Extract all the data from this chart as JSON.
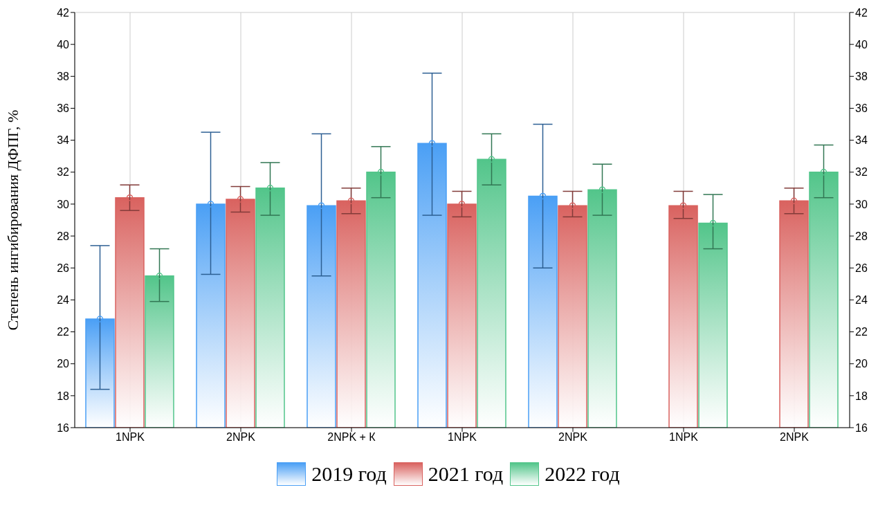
{
  "chart_data": {
    "type": "bar",
    "ylabel": "Степень ингибирования ДФПГ, %",
    "categories": [
      "1NPK",
      "2NPK",
      "2NPK + К",
      "1NPK",
      "2NPK",
      "1NPK",
      "2NPK"
    ],
    "series": [
      {
        "name": "2019 год",
        "color": "#4a9ff5",
        "values": [
          22.8,
          30.0,
          29.9,
          33.8,
          30.5,
          null,
          null
        ],
        "errors": [
          [
            18.4,
            27.4
          ],
          [
            25.6,
            34.5
          ],
          [
            25.5,
            34.4
          ],
          [
            29.3,
            38.2
          ],
          [
            26.0,
            35.0
          ],
          null,
          null
        ]
      },
      {
        "name": "2021 год",
        "color": "#d9625f",
        "values": [
          30.4,
          30.3,
          30.2,
          30.0,
          29.9,
          29.9,
          30.2
        ],
        "errors": [
          [
            29.6,
            31.2
          ],
          [
            29.5,
            31.1
          ],
          [
            29.4,
            31.0
          ],
          [
            29.2,
            30.8
          ],
          [
            29.2,
            30.8
          ],
          [
            29.1,
            30.8
          ],
          [
            29.4,
            31.0
          ]
        ]
      },
      {
        "name": "2022 год",
        "color": "#52c58a",
        "values": [
          25.5,
          31.0,
          32.0,
          32.8,
          30.9,
          28.8,
          32.0
        ],
        "errors": [
          [
            23.9,
            27.2
          ],
          [
            29.3,
            32.6
          ],
          [
            30.4,
            33.6
          ],
          [
            31.2,
            34.4
          ],
          [
            29.3,
            32.5
          ],
          [
            27.2,
            30.6
          ],
          [
            30.4,
            33.7
          ]
        ]
      }
    ],
    "ylim": [
      16,
      42
    ],
    "yticks": [
      16,
      18,
      20,
      22,
      24,
      26,
      28,
      30,
      32,
      34,
      36,
      38,
      40,
      42
    ],
    "y2lim": [
      16,
      42
    ],
    "y2ticks": [
      16,
      18,
      20,
      22,
      24,
      26,
      28,
      30,
      32,
      34,
      36,
      38,
      40,
      42
    ],
    "grid": true,
    "legend": "bottom",
    "marker": "circle"
  }
}
